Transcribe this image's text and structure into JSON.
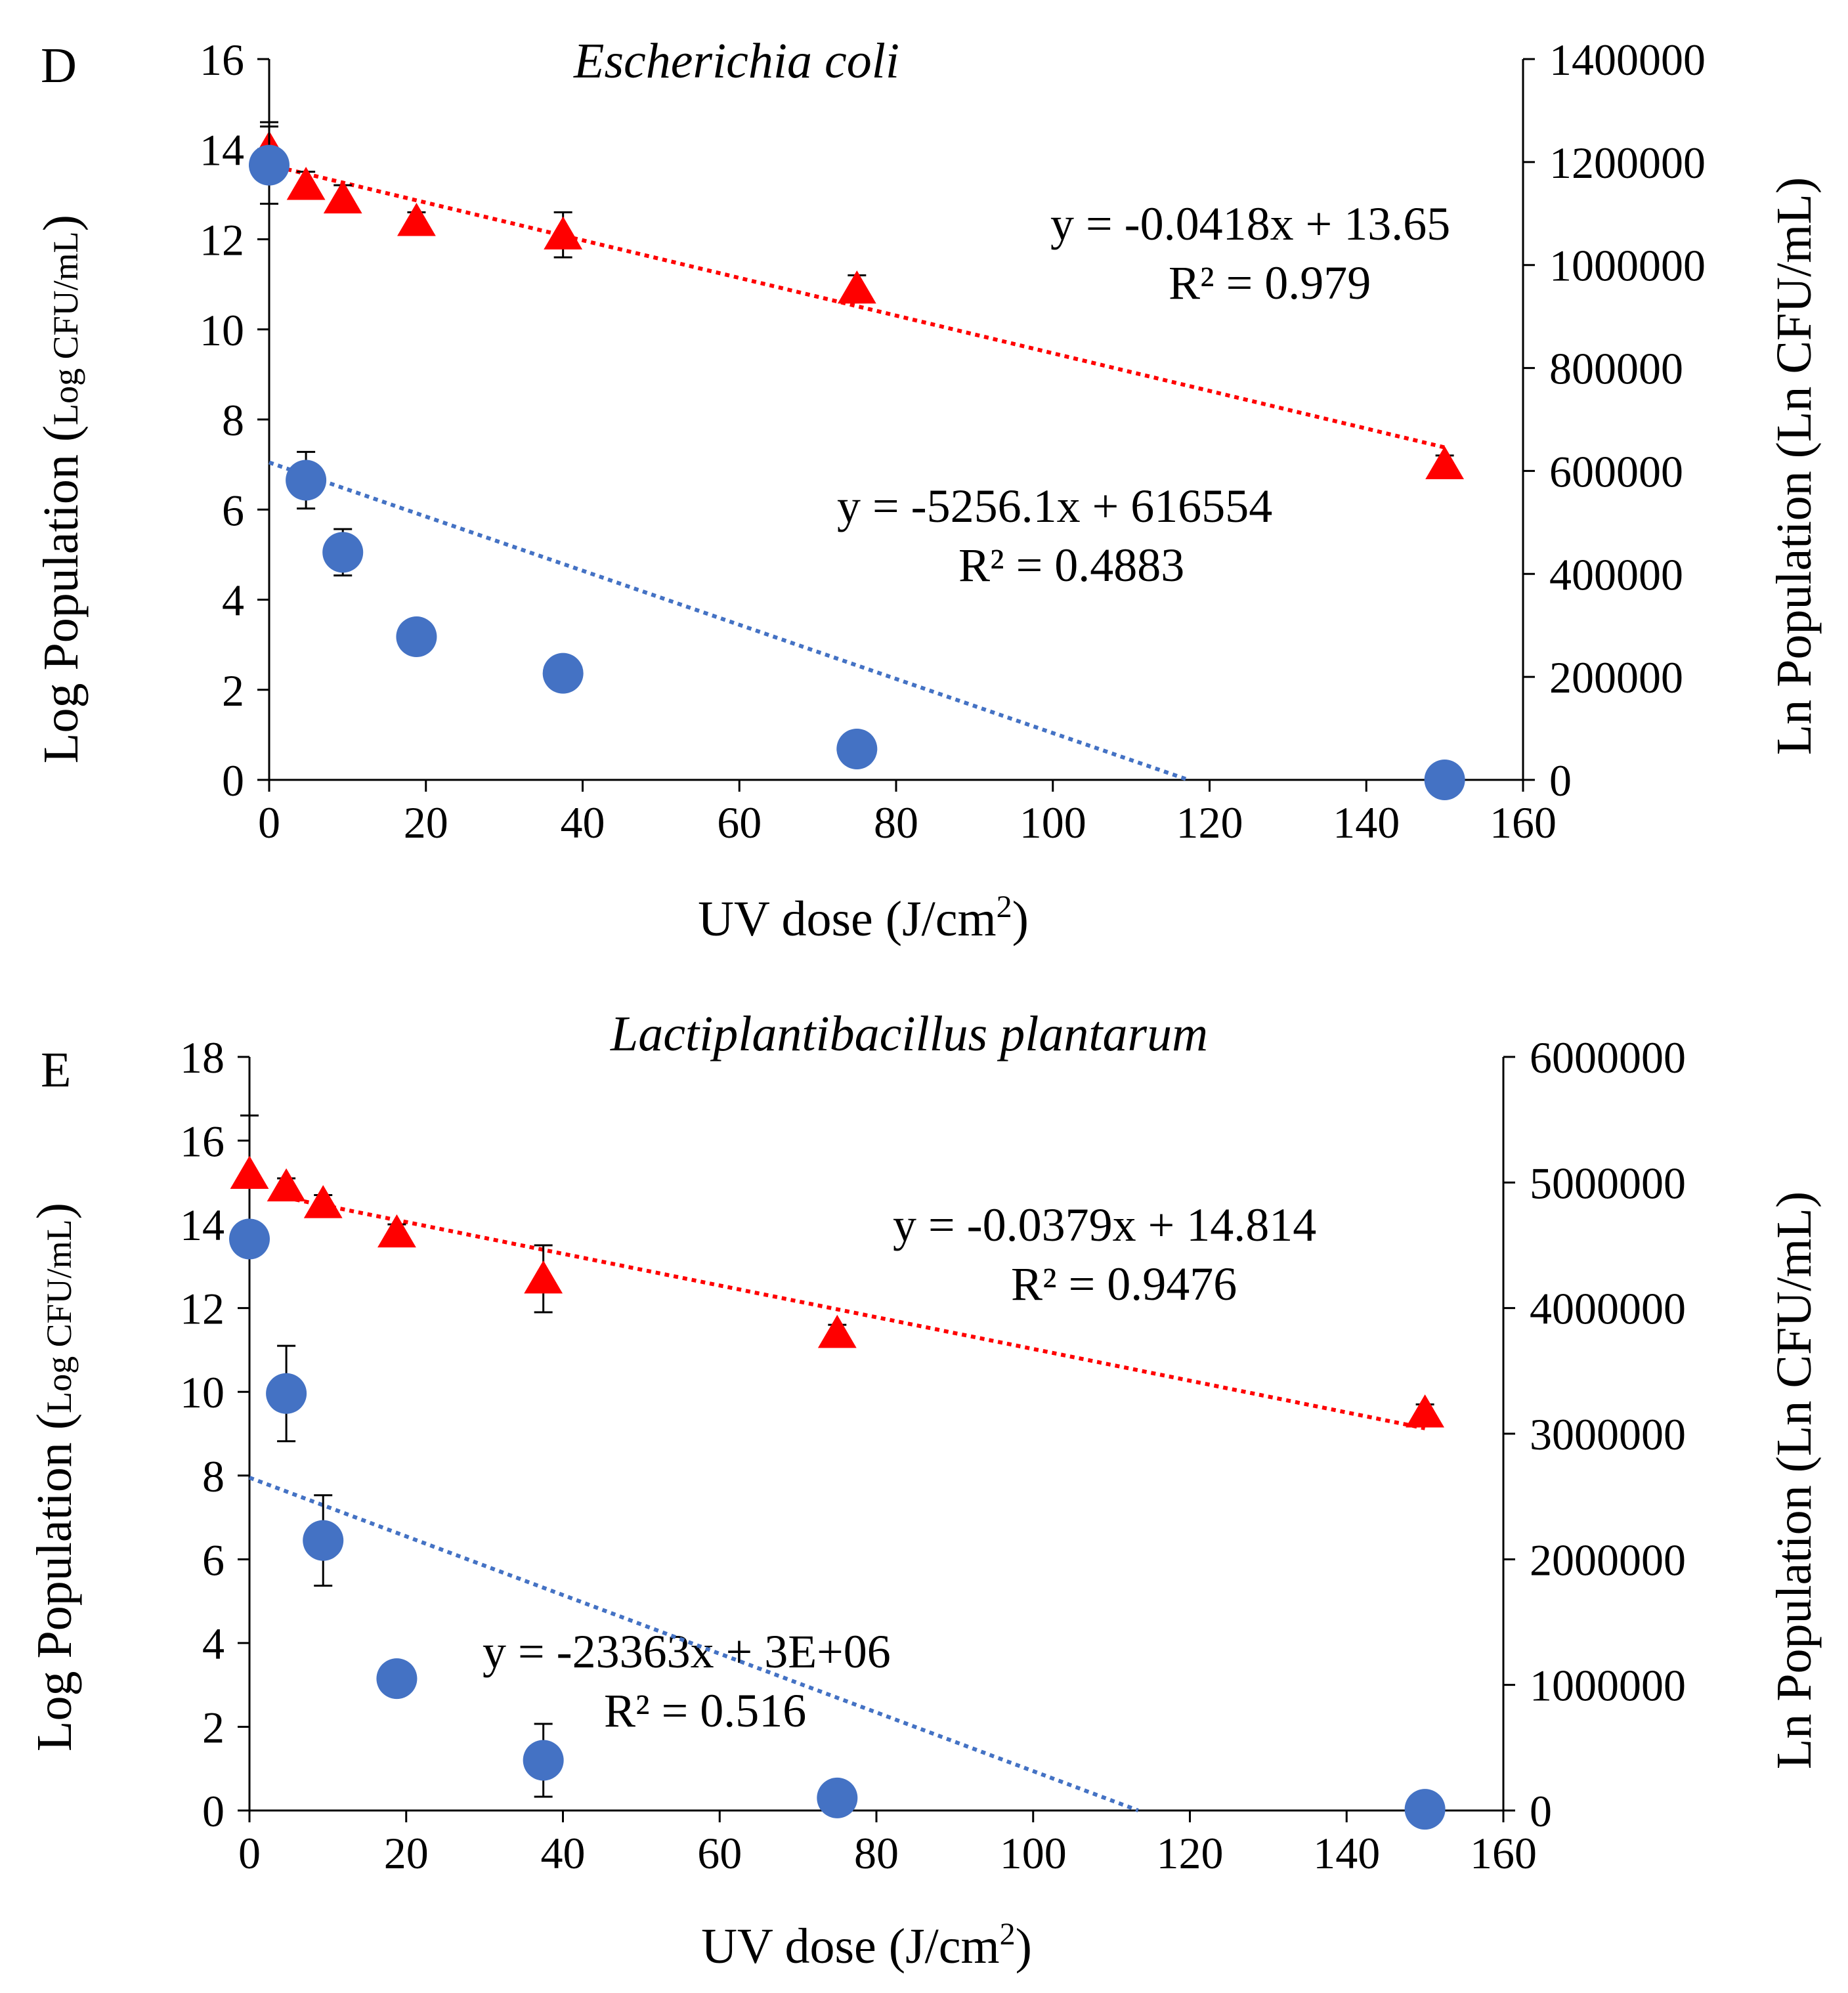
{
  "chart_data": [
    {
      "type": "scatter",
      "panel_label": "D",
      "title": "Escherichia coli",
      "xlabel": "UV dose (J/cm",
      "xlabel_sup": "2",
      "xlabel_end": ")",
      "ylabel": "Log Population (",
      "ylabel_unit": "Log CFU/mL",
      "ylabel_end": ")",
      "y2label": "Ln Population (Ln CFU/mL)",
      "xlim": [
        0,
        160
      ],
      "ylim": [
        0,
        16
      ],
      "y2lim": [
        0,
        1400000
      ],
      "xticks": [
        0,
        20,
        40,
        60,
        80,
        100,
        120,
        140,
        160
      ],
      "xtick_labels": [
        "0",
        "20",
        "40",
        "60",
        "80",
        "100",
        "120",
        "140",
        "160"
      ],
      "yticks": [
        0,
        2,
        4,
        6,
        8,
        10,
        12,
        14,
        16
      ],
      "ytick_labels": [
        "0",
        "2",
        "4",
        "6",
        "8",
        "10",
        "12",
        "14",
        "16"
      ],
      "y2ticks": [
        0,
        200000,
        400000,
        600000,
        800000,
        1000000,
        1200000,
        1400000
      ],
      "y2tick_labels": [
        "0",
        "200000",
        "400000",
        "600000",
        "800000",
        "1000000",
        "1200000",
        "1400000"
      ],
      "series": [
        {
          "name": "Log population",
          "marker": "triangle",
          "color": "#ff0000",
          "axis": "left",
          "x": [
            0,
            4.7,
            9.4,
            18.8,
            37.5,
            75,
            150
          ],
          "y": [
            14.0,
            13.2,
            12.9,
            12.4,
            12.1,
            10.9,
            7.0
          ],
          "err": [
            0.6,
            0.3,
            0.3,
            0.2,
            0.5,
            0.3,
            0.2
          ],
          "trend": {
            "equation": "y = -0.0418x + 13.65",
            "r2": "R² = 0.979",
            "slope": -0.0418,
            "intercept": 13.65,
            "x_range": [
              0,
              150
            ]
          }
        },
        {
          "name": "Ln population",
          "marker": "circle",
          "color": "#4472c4",
          "axis": "right",
          "x": [
            0,
            4.7,
            9.4,
            18.8,
            37.5,
            75,
            150
          ],
          "y": [
            1194000,
            582000,
            442000,
            278000,
            207000,
            60000,
            0
          ],
          "err": [
            75000,
            55000,
            45000,
            0,
            0,
            0,
            0
          ],
          "trend": {
            "equation": "y = -5256.1x + 616554",
            "r2": "R² = 0.4883",
            "slope": -5256.1,
            "intercept": 616554,
            "x_range": [
              0,
              117.3
            ]
          }
        }
      ]
    },
    {
      "type": "scatter",
      "panel_label": "E",
      "title": "Lactiplantibacillus plantarum",
      "xlabel": "UV dose (J/cm",
      "xlabel_sup": "2",
      "xlabel_end": ")",
      "ylabel": "Log Population (",
      "ylabel_unit": "Log CFU/mL",
      "ylabel_end": ")",
      "y2label": "Ln Population (Ln CFU/mL)",
      "xlim": [
        0,
        160
      ],
      "ylim": [
        0,
        18
      ],
      "y2lim": [
        0,
        6000000
      ],
      "xticks": [
        0,
        20,
        40,
        60,
        80,
        100,
        120,
        140,
        160
      ],
      "xtick_labels": [
        "0",
        "20",
        "40",
        "60",
        "80",
        "100",
        "120",
        "140",
        "160"
      ],
      "yticks": [
        0,
        2,
        4,
        6,
        8,
        10,
        12,
        14,
        16,
        18
      ],
      "ytick_labels": [
        "0",
        "2",
        "4",
        "6",
        "8",
        "10",
        "12",
        "14",
        "16",
        "18"
      ],
      "y2ticks": [
        0,
        1000000,
        2000000,
        3000000,
        4000000,
        5000000,
        6000000
      ],
      "y2tick_labels": [
        "0",
        "1000000",
        "2000000",
        "3000000",
        "4000000",
        "5000000",
        "6000000"
      ],
      "series": [
        {
          "name": "Log population",
          "marker": "triangle",
          "color": "#ff0000",
          "axis": "left",
          "x": [
            0,
            4.7,
            9.4,
            18.8,
            37.5,
            75,
            150
          ],
          "y": [
            15.2,
            14.9,
            14.5,
            13.8,
            12.7,
            11.4,
            9.5
          ],
          "err": [
            1.4,
            0.2,
            0.2,
            0.2,
            0.8,
            0.2,
            0.2
          ],
          "trend": {
            "equation": "y = -0.0379x + 14.814",
            "r2": "R² = 0.9476",
            "slope": -0.0379,
            "intercept": 14.814,
            "x_range": [
              4.7,
              150
            ]
          }
        },
        {
          "name": "Ln population",
          "marker": "circle",
          "color": "#4472c4",
          "axis": "right",
          "x": [
            0,
            4.7,
            9.4,
            18.8,
            37.5,
            75,
            150
          ],
          "y": [
            4550000,
            3320000,
            2150000,
            1050000,
            400000,
            100000,
            10000
          ],
          "err": [
            0,
            380000,
            360000,
            0,
            290000,
            0,
            0
          ],
          "trend": {
            "equation": "y = -23363x + 3E+06",
            "r2": "R² = 0.516",
            "slope": -23363,
            "intercept": 2650000,
            "x_range": [
              0,
              113.4
            ]
          }
        }
      ]
    }
  ]
}
